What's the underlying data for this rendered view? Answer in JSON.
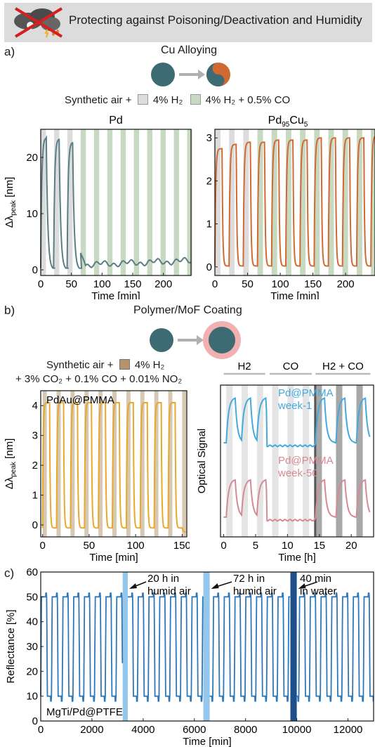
{
  "header": {
    "title": "Protecting against Poisoning/Deactivation and Humidity",
    "icon": "no-poison-cloud-icon"
  },
  "colors": {
    "h2_band": "#dcdcdc",
    "co_band": "#c8d9c1",
    "pd_line": "#5a7d86",
    "pdcu_line": "#d06a32",
    "pdau_line": "#e8a92a",
    "tan_band": "#d7c8b4",
    "week1_line": "#46a9dc",
    "week50_line": "#d58a95",
    "mgti_line": "#2f78b8",
    "humid_band": "#93c8ec",
    "water_band": "#1f4f8a",
    "particle": "#3c6b73",
    "coating": "#f2b0b0"
  },
  "panel_a": {
    "label": "a)",
    "title": "Cu Alloying",
    "legend": {
      "prefix": "Synthetic air +",
      "h2": "4% H₂",
      "co": "4% H₂ + 0.5% CO"
    }
  },
  "panel_b": {
    "label": "b)",
    "title": "Polymer/MoF Coating",
    "legend_line1_prefix": "Synthetic air +",
    "legend_line1_gas": "4% H₂",
    "legend_line2": "+ 3% CO₂ + 0.1% CO + 0.01% NO₂"
  },
  "panel_c": {
    "label": "c)",
    "annotations": [
      "20 h in humid air",
      "72 h in humid air",
      "40 min in water"
    ]
  },
  "chart_data": [
    {
      "id": "pd",
      "type": "line",
      "title": "Pd",
      "xlabel": "Time [min]",
      "ylabel": "Δλpeak [nm]",
      "xlim": [
        0,
        245
      ],
      "ylim": [
        -1,
        25
      ],
      "xticks": [
        0,
        50,
        100,
        150,
        200
      ],
      "yticks": [
        0,
        10,
        20
      ],
      "cycles_h2": [
        [
          0,
          24,
          23.5
        ],
        [
          21,
          46,
          23.3
        ],
        [
          43,
          67,
          22.7
        ]
      ],
      "cycles_co": [
        [
          65,
          245,
          2.0
        ]
      ],
      "period_min": 21.7,
      "pulse_min": 8.5
    },
    {
      "id": "pdcu",
      "type": "line",
      "title": "Pd95Cu5",
      "xlabel": "Time [min]",
      "ylabel": "",
      "xlim": [
        0,
        245
      ],
      "ylim": [
        -0.2,
        3.2
      ],
      "xticks": [
        0,
        50,
        100,
        150,
        200
      ],
      "yticks": [
        0,
        1,
        2,
        3
      ],
      "n_h2": 3,
      "peaks": [
        2.75,
        2.85,
        2.9,
        2.9,
        2.95,
        2.95,
        2.95,
        3.0,
        3.0,
        3.0,
        3.0,
        3.05
      ],
      "period_min": 21.7,
      "pulse_min": 8.5
    },
    {
      "id": "pdau",
      "type": "line",
      "title": "",
      "annotation": "PdAu@PMMA",
      "xlabel": "Time [min]",
      "ylabel": "Δλpeak [nm]",
      "xlim": [
        -2,
        155
      ],
      "ylim": [
        -0.4,
        4.5
      ],
      "xticks": [
        0,
        50,
        100,
        150
      ],
      "yticks": [
        0,
        1,
        2,
        3,
        4
      ],
      "period_min": 15,
      "pulse_min": 7.5,
      "peak": 4.1
    },
    {
      "id": "pmma",
      "type": "line",
      "title": "",
      "xlabel": "Time [h]",
      "ylabel": "Optical Signal",
      "xlim": [
        -0.5,
        23.5
      ],
      "xticks": [
        0,
        5,
        10,
        15,
        20
      ],
      "segments": [
        {
          "name": "H2",
          "label": "H2",
          "range": [
            0,
            6.5
          ],
          "pulses": [
            [
              0.4,
              1.4
            ],
            [
              2.8,
              3.8
            ],
            [
              5.2,
              6.2
            ]
          ]
        },
        {
          "name": "CO",
          "label": "CO",
          "range": [
            7.2,
            13.8
          ],
          "pulses": [
            [
              7.6,
              8.6
            ],
            [
              10.0,
              11.0
            ],
            [
              12.4,
              13.4
            ]
          ]
        },
        {
          "name": "H2+CO",
          "label": "H2 + CO",
          "range": [
            14.4,
            23
          ],
          "pulses": [
            [
              14.4,
              15.4
            ],
            [
              17.6,
              18.6
            ],
            [
              20.8,
              21.8
            ]
          ]
        }
      ],
      "series": [
        {
          "name": "Pd@PMMA week-1",
          "offset": 0.62,
          "amp": 0.3,
          "legend": [
            "Pd@PMMA",
            "week-1"
          ]
        },
        {
          "name": "Pd@PMMA week-50",
          "offset": 0.13,
          "amp": 0.25,
          "legend": [
            "Pd@PMMA",
            "week-50"
          ]
        }
      ]
    },
    {
      "id": "mgti",
      "type": "line",
      "title": "",
      "annotation": "MgTi/Pd@PTFE",
      "xlabel": "Time [min]",
      "ylabel": "Reflectance [%]",
      "xlim": [
        0,
        13000
      ],
      "ylim": [
        0,
        60
      ],
      "xticks": [
        0,
        2000,
        4000,
        6000,
        8000,
        10000,
        12000
      ],
      "yticks": [
        0,
        10,
        20,
        30,
        40,
        50,
        60
      ],
      "high": 50,
      "low": 10,
      "period_min": 420,
      "pulse_min": 230,
      "bands": [
        {
          "name": "humid-20h",
          "start": 3200,
          "end": 3400
        },
        {
          "name": "humid-72h",
          "start": 6350,
          "end": 6600
        },
        {
          "name": "water-40min",
          "start": 9750,
          "end": 10000
        }
      ]
    }
  ]
}
